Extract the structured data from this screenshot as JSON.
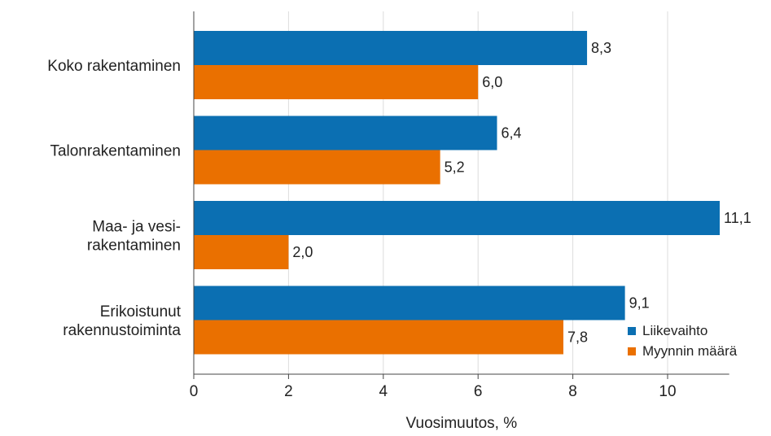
{
  "chart_data": {
    "type": "bar",
    "orientation": "horizontal",
    "categories": [
      [
        "Koko rakentaminen"
      ],
      [
        "Talonrakentaminen"
      ],
      [
        "Maa- ja vesi-",
        "rakentaminen"
      ],
      [
        "Erikoistunut",
        "rakennustoiminta"
      ]
    ],
    "series": [
      {
        "name": "Liikevaihto",
        "color": "#0b6fb2",
        "values": [
          8.3,
          6.4,
          11.1,
          9.1
        ],
        "labels": [
          "8,3",
          "6,4",
          "11,1",
          "9,1"
        ]
      },
      {
        "name": "Myynnin määrä",
        "color": "#ea7000",
        "values": [
          6.0,
          5.2,
          2.0,
          7.8
        ],
        "labels": [
          "6,0",
          "5,2",
          "2,0",
          "7,8"
        ]
      }
    ],
    "xlim": [
      0,
      11.3
    ],
    "xticks": [
      0,
      2,
      4,
      6,
      8,
      10
    ],
    "xticklabels": [
      "0",
      "2",
      "4",
      "6",
      "8",
      "10"
    ],
    "xlabel": "Vuosimuutos, %",
    "grid": "vertical",
    "legend_position": "bottom-right"
  }
}
